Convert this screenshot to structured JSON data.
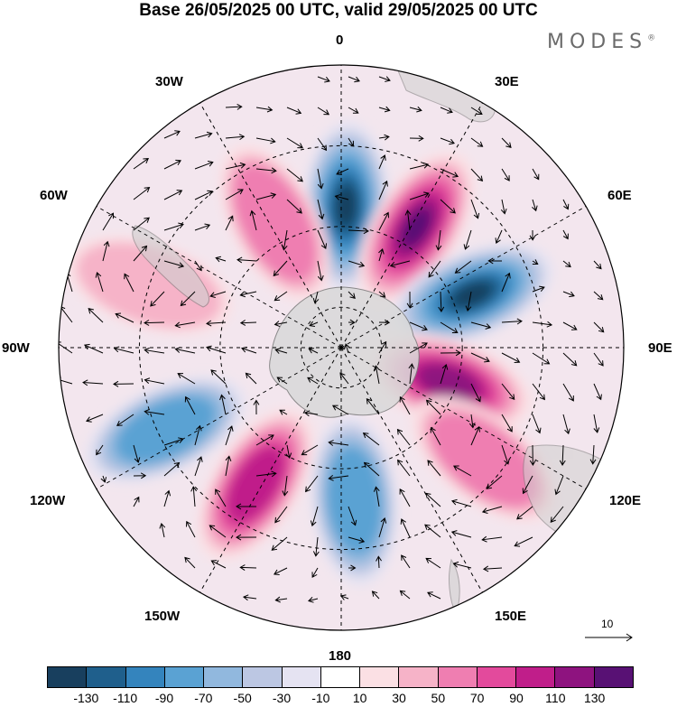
{
  "title": "Base 26/05/2025 00 UTC, valid 29/05/2025 00 UTC",
  "brand": "MODES",
  "brand_mark": "®",
  "longitudes": {
    "lon_0": "0",
    "lon_30e": "30E",
    "lon_60e": "60E",
    "lon_90e": "90E",
    "lon_120e": "120E",
    "lon_150e": "150E",
    "lon_180": "180",
    "lon_150w": "150W",
    "lon_120w": "120W",
    "lon_90w": "90W",
    "lon_60w": "60W",
    "lon_30w": "30W"
  },
  "reference_vector": "10",
  "colorbar": {
    "colors": [
      "#183f5e",
      "#1f5f8c",
      "#3484bd",
      "#5aa2d3",
      "#91b8de",
      "#bcc7e3",
      "#e5e3f2",
      "#ffffff",
      "#fbe0e4",
      "#f6b3c8",
      "#ef7eb1",
      "#e34a9c",
      "#c01e8a",
      "#8e137f",
      "#581174"
    ],
    "ticks": [
      "-130",
      "-110",
      "-90",
      "-70",
      "-50",
      "-30",
      "-10",
      "10",
      "30",
      "50",
      "70",
      "90",
      "110",
      "130"
    ]
  },
  "anomalies": [
    {
      "name": "low-0",
      "lon": 2,
      "lat": -55,
      "value": -130
    },
    {
      "name": "high-30e",
      "lon": 32,
      "lat": -55,
      "value": 130
    },
    {
      "name": "low-60e",
      "lon": 68,
      "lat": -55,
      "value": -130
    },
    {
      "name": "high-105e",
      "lon": 108,
      "lat": -62,
      "value": 110
    },
    {
      "name": "high-130e",
      "lon": 128,
      "lat": -45,
      "value": 50
    },
    {
      "name": "low-175e",
      "lon": 175,
      "lat": -52,
      "value": -70
    },
    {
      "name": "high-150w",
      "lon": -148,
      "lat": -50,
      "value": 90
    },
    {
      "name": "low-115w",
      "lon": -115,
      "lat": -42,
      "value": -70
    },
    {
      "name": "high-35w",
      "lon": -28,
      "lat": -55,
      "value": 50
    },
    {
      "name": "high-70w",
      "lon": -72,
      "lat": -40,
      "value": 30
    }
  ]
}
